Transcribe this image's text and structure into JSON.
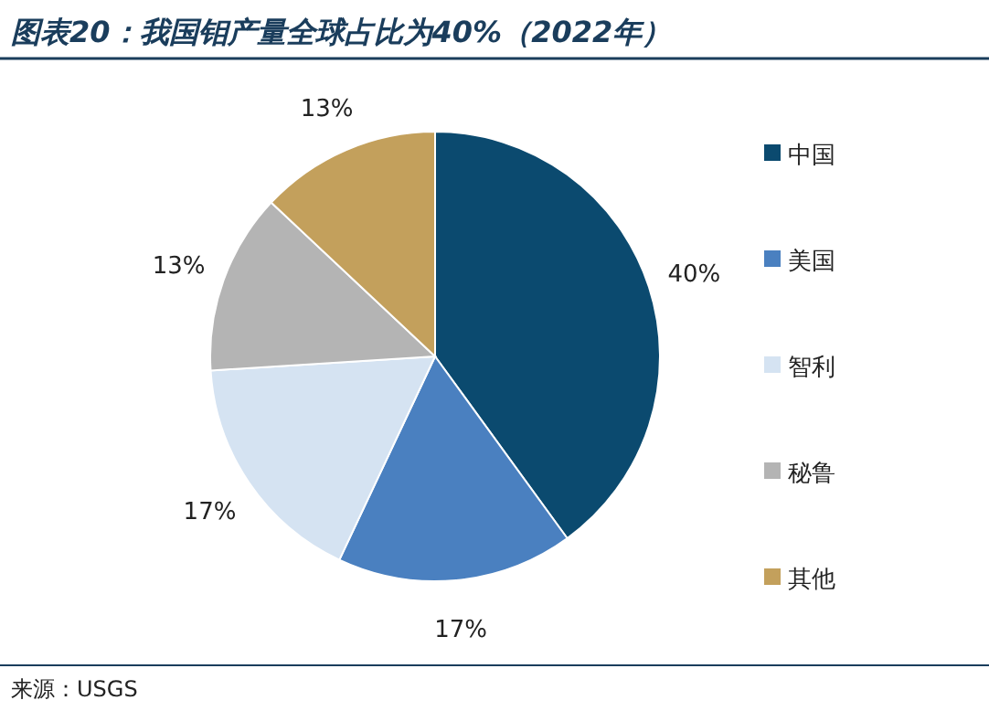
{
  "chart_data": {
    "type": "pie",
    "title": "图表20：我国钼产量全球占比为40%（2022年）",
    "categories": [
      "中国",
      "美国",
      "智利",
      "秘鲁",
      "其他"
    ],
    "values": [
      40,
      17,
      17,
      13,
      13
    ],
    "colors": [
      "#0b4a6f",
      "#4a80c0",
      "#d5e3f2",
      "#b4b4b4",
      "#c3a05c"
    ],
    "value_labels": [
      "40%",
      "17%",
      "17%",
      "13%",
      "13%"
    ],
    "legend": "right",
    "annotations": [
      "来源：USGS"
    ]
  }
}
